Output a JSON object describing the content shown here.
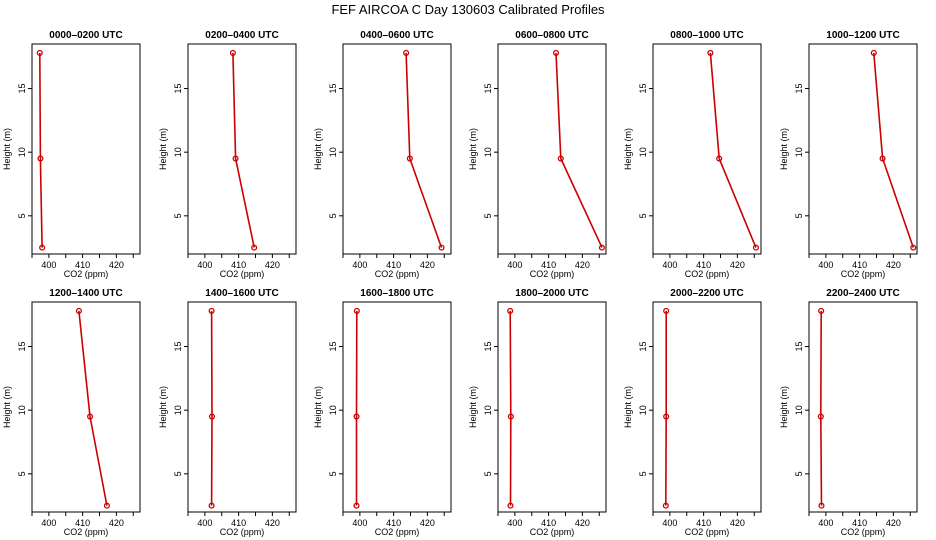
{
  "page": {
    "title": "FEF AIRCOA C  Day 130603  Calibrated Profiles"
  },
  "chart_data": [
    {
      "type": "line",
      "title": "0000–0200 UTC",
      "xlabel": "CO2 (ppm)",
      "ylabel": "Height (m)",
      "xlim": [
        395,
        427
      ],
      "ylim": [
        2,
        18.5
      ],
      "xticks": [
        400,
        410,
        420
      ],
      "yticks": [
        5,
        10,
        15
      ],
      "grid": false,
      "color": "#cc0000",
      "series": [
        {
          "x": [
            397.3,
            397.5,
            398.0
          ],
          "y": [
            17.8,
            9.5,
            2.5
          ]
        }
      ]
    },
    {
      "type": "line",
      "title": "0200–0400 UTC",
      "xlabel": "CO2 (ppm)",
      "ylabel": "Height (m)",
      "xlim": [
        395,
        427
      ],
      "ylim": [
        2,
        18.5
      ],
      "xticks": [
        400,
        410,
        420
      ],
      "yticks": [
        5,
        10,
        15
      ],
      "grid": false,
      "color": "#cc0000",
      "series": [
        {
          "x": [
            408.3,
            409.1,
            414.6
          ],
          "y": [
            17.8,
            9.5,
            2.5
          ]
        }
      ]
    },
    {
      "type": "line",
      "title": "0400–0600 UTC",
      "xlabel": "CO2 (ppm)",
      "ylabel": "Height (m)",
      "xlim": [
        395,
        427
      ],
      "ylim": [
        2,
        18.5
      ],
      "xticks": [
        400,
        410,
        420
      ],
      "yticks": [
        5,
        10,
        15
      ],
      "grid": false,
      "color": "#cc0000",
      "series": [
        {
          "x": [
            413.7,
            414.8,
            424.2
          ],
          "y": [
            17.8,
            9.5,
            2.5
          ]
        }
      ]
    },
    {
      "type": "line",
      "title": "0600–0800 UTC",
      "xlabel": "CO2 (ppm)",
      "ylabel": "Height (m)",
      "xlim": [
        395,
        427
      ],
      "ylim": [
        2,
        18.5
      ],
      "xticks": [
        400,
        410,
        420
      ],
      "yticks": [
        5,
        10,
        15
      ],
      "grid": false,
      "color": "#cc0000",
      "series": [
        {
          "x": [
            412.2,
            413.6,
            425.8
          ],
          "y": [
            17.8,
            9.5,
            2.5
          ]
        }
      ]
    },
    {
      "type": "line",
      "title": "0800–1000 UTC",
      "xlabel": "CO2 (ppm)",
      "ylabel": "Height (m)",
      "xlim": [
        395,
        427
      ],
      "ylim": [
        2,
        18.5
      ],
      "xticks": [
        400,
        410,
        420
      ],
      "yticks": [
        5,
        10,
        15
      ],
      "grid": false,
      "color": "#cc0000",
      "series": [
        {
          "x": [
            412.0,
            414.6,
            425.5
          ],
          "y": [
            17.8,
            9.5,
            2.5
          ]
        }
      ]
    },
    {
      "type": "line",
      "title": "1000–1200 UTC",
      "xlabel": "CO2 (ppm)",
      "ylabel": "Height (m)",
      "xlim": [
        395,
        427
      ],
      "ylim": [
        2,
        18.5
      ],
      "xticks": [
        400,
        410,
        420
      ],
      "yticks": [
        5,
        10,
        15
      ],
      "grid": false,
      "color": "#cc0000",
      "series": [
        {
          "x": [
            414.2,
            416.8,
            425.9
          ],
          "y": [
            17.8,
            9.5,
            2.5
          ]
        }
      ]
    },
    {
      "type": "line",
      "title": "1200–1400 UTC",
      "xlabel": "CO2 (ppm)",
      "ylabel": "Height (m)",
      "xlim": [
        395,
        427
      ],
      "ylim": [
        2,
        18.5
      ],
      "xticks": [
        400,
        410,
        420
      ],
      "yticks": [
        5,
        10,
        15
      ],
      "grid": false,
      "color": "#cc0000",
      "series": [
        {
          "x": [
            408.9,
            412.2,
            417.2
          ],
          "y": [
            17.8,
            9.5,
            2.5
          ]
        }
      ]
    },
    {
      "type": "line",
      "title": "1400–1600 UTC",
      "xlabel": "CO2 (ppm)",
      "ylabel": "Height (m)",
      "xlim": [
        395,
        427
      ],
      "ylim": [
        2,
        18.5
      ],
      "xticks": [
        400,
        410,
        420
      ],
      "yticks": [
        5,
        10,
        15
      ],
      "grid": false,
      "color": "#cc0000",
      "series": [
        {
          "x": [
            402.0,
            402.1,
            402.0
          ],
          "y": [
            17.8,
            9.5,
            2.5
          ]
        }
      ]
    },
    {
      "type": "line",
      "title": "1600–1800 UTC",
      "xlabel": "CO2 (ppm)",
      "ylabel": "Height (m)",
      "xlim": [
        395,
        427
      ],
      "ylim": [
        2,
        18.5
      ],
      "xticks": [
        400,
        410,
        420
      ],
      "yticks": [
        5,
        10,
        15
      ],
      "grid": false,
      "color": "#cc0000",
      "series": [
        {
          "x": [
            399.1,
            399.0,
            399.0
          ],
          "y": [
            17.8,
            9.5,
            2.5
          ]
        }
      ]
    },
    {
      "type": "line",
      "title": "1800–2000 UTC",
      "xlabel": "CO2 (ppm)",
      "ylabel": "Height (m)",
      "xlim": [
        395,
        427
      ],
      "ylim": [
        2,
        18.5
      ],
      "xticks": [
        400,
        410,
        420
      ],
      "yticks": [
        5,
        10,
        15
      ],
      "grid": false,
      "color": "#cc0000",
      "series": [
        {
          "x": [
            398.6,
            398.8,
            398.7
          ],
          "y": [
            17.8,
            9.5,
            2.5
          ]
        }
      ]
    },
    {
      "type": "line",
      "title": "2000–2200 UTC",
      "xlabel": "CO2 (ppm)",
      "ylabel": "Height (m)",
      "xlim": [
        395,
        427
      ],
      "ylim": [
        2,
        18.5
      ],
      "xticks": [
        400,
        410,
        420
      ],
      "yticks": [
        5,
        10,
        15
      ],
      "grid": false,
      "color": "#cc0000",
      "series": [
        {
          "x": [
            398.9,
            398.9,
            398.8
          ],
          "y": [
            17.8,
            9.5,
            2.5
          ]
        }
      ]
    },
    {
      "type": "line",
      "title": "2200–2400 UTC",
      "xlabel": "CO2 (ppm)",
      "ylabel": "Height (m)",
      "xlim": [
        395,
        427
      ],
      "ylim": [
        2,
        18.5
      ],
      "xticks": [
        400,
        410,
        420
      ],
      "yticks": [
        5,
        10,
        15
      ],
      "grid": false,
      "color": "#cc0000",
      "series": [
        {
          "x": [
            398.6,
            398.5,
            398.7
          ],
          "y": [
            17.8,
            9.5,
            2.5
          ]
        }
      ]
    }
  ]
}
